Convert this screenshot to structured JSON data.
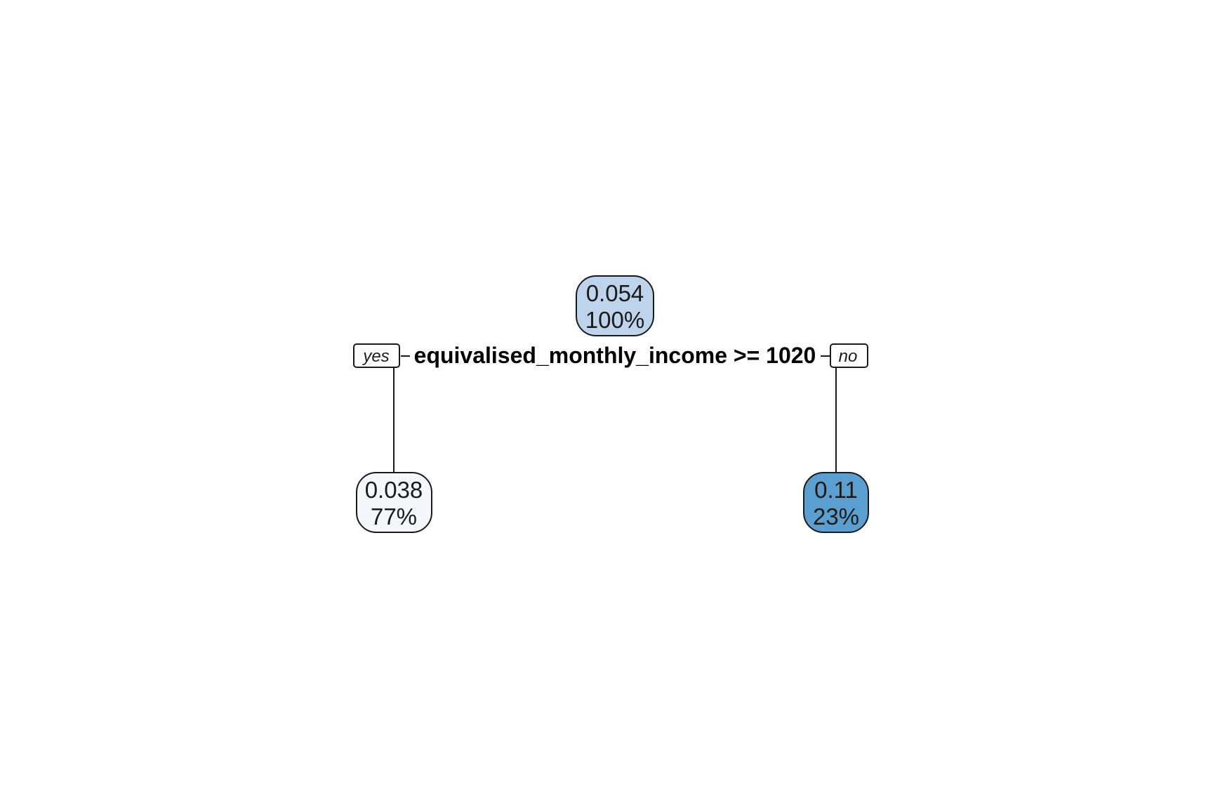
{
  "tree": {
    "root": {
      "value": "0.054",
      "percent": "100%",
      "fill_color": "#bed3ec"
    },
    "split": {
      "rule": "equivalised_monthly_income >= 1020",
      "yes_label": "yes",
      "no_label": "no"
    },
    "left_leaf": {
      "value": "0.038",
      "percent": "77%",
      "fill_color": "#f4f8fc"
    },
    "right_leaf": {
      "value": "0.11",
      "percent": "23%",
      "fill_color": "#5a9fcf"
    }
  }
}
